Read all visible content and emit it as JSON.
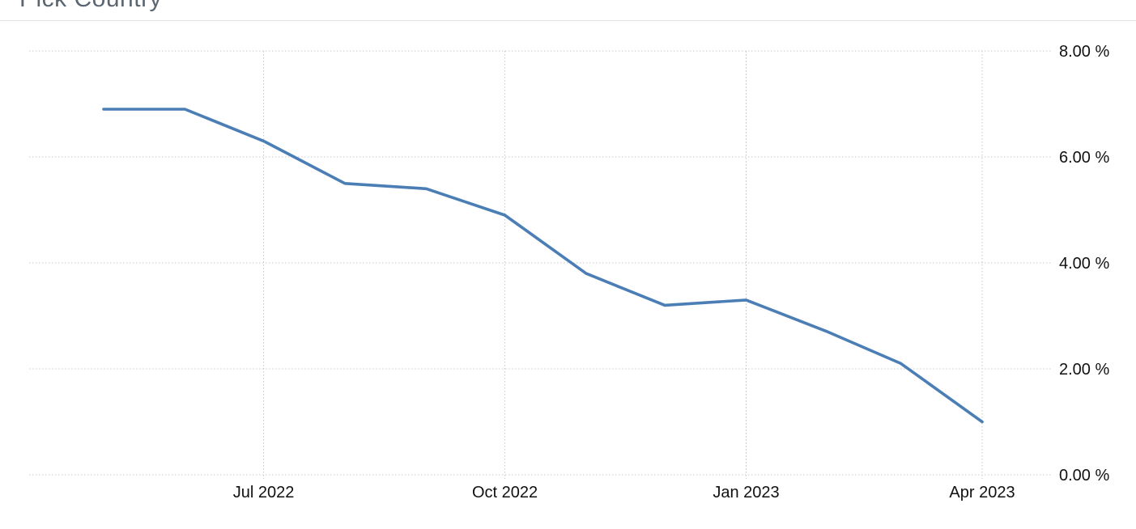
{
  "header": {
    "title": "Pick Country"
  },
  "colors": {
    "line": "#4a7eb5",
    "grid": "#c9c9c9",
    "divider": "#e3e3e8",
    "title_text": "#5b6670",
    "axis_text": "#111111",
    "background": "#ffffff"
  },
  "chart_data": {
    "type": "line",
    "title": "",
    "legend": "none",
    "grid": "dotted",
    "unit": "%",
    "ylim": [
      0,
      8
    ],
    "x_range": [
      "2022-05-01",
      "2023-04-01"
    ],
    "x": [
      "2022-05-01",
      "2022-06-01",
      "2022-07-01",
      "2022-08-01",
      "2022-09-01",
      "2022-10-01",
      "2022-11-01",
      "2022-12-01",
      "2023-01-01",
      "2023-02-01",
      "2023-03-01",
      "2023-04-01"
    ],
    "values": [
      6.9,
      6.9,
      6.3,
      5.5,
      5.4,
      4.9,
      3.8,
      3.2,
      3.3,
      2.7,
      2.1,
      1.0
    ],
    "y_ticks": [
      {
        "value": 8,
        "label": "8.00 %"
      },
      {
        "value": 6,
        "label": "6.00 %"
      },
      {
        "value": 4,
        "label": "4.00 %"
      },
      {
        "value": 2,
        "label": "2.00 %"
      },
      {
        "value": 0,
        "label": "0.00 %"
      }
    ],
    "x_ticks": [
      {
        "date": "2022-07-01",
        "label": "Jul 2022"
      },
      {
        "date": "2022-10-01",
        "label": "Oct 2022"
      },
      {
        "date": "2023-01-01",
        "label": "Jan 2023"
      },
      {
        "date": "2023-04-01",
        "label": "Apr 2023"
      }
    ],
    "line_color": "#4a7eb5"
  }
}
